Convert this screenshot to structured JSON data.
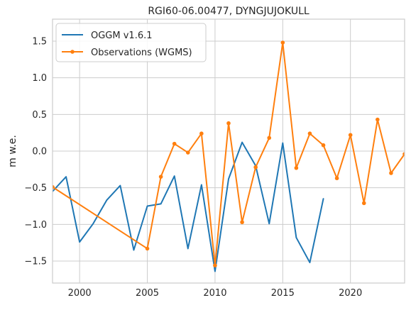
{
  "chart_data": {
    "type": "line",
    "title": "RGI60-06.00477, DYNGJUJOKULL",
    "xlabel": "",
    "ylabel": "m w.e.",
    "xlim": [
      1998,
      2024
    ],
    "ylim": [
      -1.8,
      1.8
    ],
    "xticks": [
      2000,
      2005,
      2010,
      2015,
      2020
    ],
    "yticks": [
      -1.5,
      -1.0,
      -0.5,
      0.0,
      0.5,
      1.0,
      1.5
    ],
    "xtick_labels": [
      "2000",
      "2005",
      "2010",
      "2015",
      "2020"
    ],
    "ytick_labels": [
      "−1.5",
      "−1.0",
      "−0.5",
      "0.0",
      "0.5",
      "1.0",
      "1.5"
    ],
    "grid": true,
    "legend_position": "top-left",
    "series": [
      {
        "name": "OGGM v1.6.1",
        "color": "#1f77b4",
        "marker": "none",
        "x": [
          1998,
          1999,
          2000,
          2001,
          2002,
          2003,
          2004,
          2005,
          2006,
          2007,
          2008,
          2009,
          2010,
          2011,
          2012,
          2013,
          2014,
          2015,
          2016,
          2017,
          2018
        ],
        "y": [
          -0.55,
          -0.35,
          -1.24,
          -0.99,
          -0.67,
          -0.47,
          -1.35,
          -0.75,
          -0.72,
          -0.34,
          -1.33,
          -0.46,
          -1.64,
          -0.38,
          0.12,
          -0.2,
          -0.99,
          0.11,
          -1.18,
          -1.52,
          -0.65
        ]
      },
      {
        "name": "Observations (WGMS)",
        "color": "#ff7f0e",
        "marker": "circle",
        "x": [
          1998,
          2005,
          2006,
          2007,
          2008,
          2009,
          2010,
          2011,
          2012,
          2013,
          2014,
          2015,
          2016,
          2017,
          2018,
          2019,
          2020,
          2021,
          2022,
          2023,
          2024
        ],
        "y": [
          -0.49,
          -1.33,
          -0.35,
          0.1,
          -0.02,
          0.24,
          -1.56,
          0.38,
          -0.97,
          -0.22,
          0.18,
          1.48,
          -0.23,
          0.24,
          0.08,
          -0.37,
          0.22,
          -0.71,
          0.43,
          -0.3,
          -0.04
        ]
      }
    ]
  }
}
